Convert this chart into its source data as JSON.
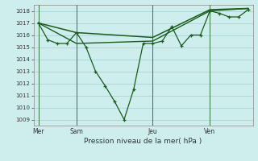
{
  "background_color": "#ceeeed",
  "grid_color": "#b0d8d8",
  "line_color": "#1a5c1a",
  "xlabel": "Pression niveau de la mer( hPa )",
  "ylim": [
    1008.5,
    1018.5
  ],
  "yticks": [
    1009,
    1010,
    1011,
    1012,
    1013,
    1014,
    1015,
    1016,
    1017,
    1018
  ],
  "day_labels": [
    "Mer",
    "Sam",
    "Jeu",
    "Ven"
  ],
  "day_positions": [
    0,
    16,
    48,
    72
  ],
  "xlim": [
    -2,
    90
  ],
  "series1_x": [
    0,
    4,
    8,
    12,
    16,
    20,
    24,
    28,
    32,
    36,
    40,
    44,
    48,
    52,
    56,
    60,
    64,
    68,
    72,
    76,
    80,
    84,
    88
  ],
  "series1_y": [
    1017.0,
    1015.6,
    1015.3,
    1015.3,
    1016.2,
    1015.0,
    1013.0,
    1011.8,
    1010.5,
    1009.0,
    1011.5,
    1015.3,
    1015.3,
    1015.5,
    1016.7,
    1015.1,
    1016.0,
    1016.0,
    1018.0,
    1017.8,
    1017.5,
    1017.5,
    1018.1
  ],
  "series2_x": [
    0,
    16,
    48,
    72,
    88
  ],
  "series2_y": [
    1017.0,
    1016.2,
    1015.8,
    1018.1,
    1018.2
  ],
  "series3_x": [
    0,
    16,
    48,
    72,
    88
  ],
  "series3_y": [
    1017.0,
    1015.3,
    1015.5,
    1018.0,
    1018.2
  ],
  "vline_positions": [
    0,
    16,
    48,
    72
  ]
}
